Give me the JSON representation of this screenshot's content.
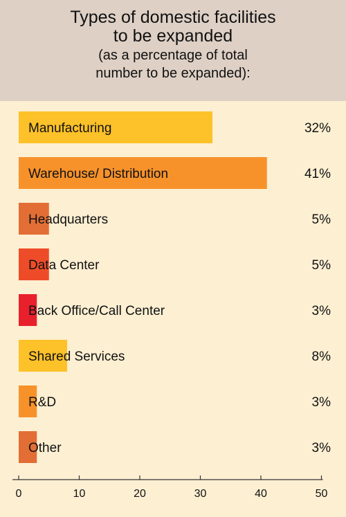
{
  "chart": {
    "title_line1": "Types of domestic facilities",
    "title_line2": "to be expanded",
    "subtitle_line1": "(as a percentage of total",
    "subtitle_line2": "number to be expanded):"
  },
  "chart_data": {
    "type": "bar",
    "orientation": "horizontal",
    "title": "Types of domestic facilities to be expanded (as a percentage of total number to be expanded):",
    "categories": [
      "Manufacturing",
      "Warehouse/ Distribution",
      "Headquarters",
      "Data Center",
      "Back Office/Call Center",
      "Shared Services",
      "R&D",
      "Other"
    ],
    "values": [
      32,
      41,
      5,
      5,
      3,
      8,
      3,
      3
    ],
    "value_labels": [
      "32%",
      "41%",
      "5%",
      "5%",
      "3%",
      "8%",
      "3%",
      "3%"
    ],
    "colors": [
      "#fdc129",
      "#f7922b",
      "#e26e35",
      "#ee4c28",
      "#e8202c",
      "#fdc129",
      "#f7922b",
      "#e26e35"
    ],
    "xlim": [
      0,
      50
    ],
    "xticks": [
      0,
      10,
      20,
      30,
      40,
      50
    ],
    "xtick_labels": [
      "0",
      "10",
      "20",
      "30",
      "40",
      "50"
    ],
    "xlabel": "",
    "ylabel": "",
    "grid": false,
    "legend": "none"
  }
}
